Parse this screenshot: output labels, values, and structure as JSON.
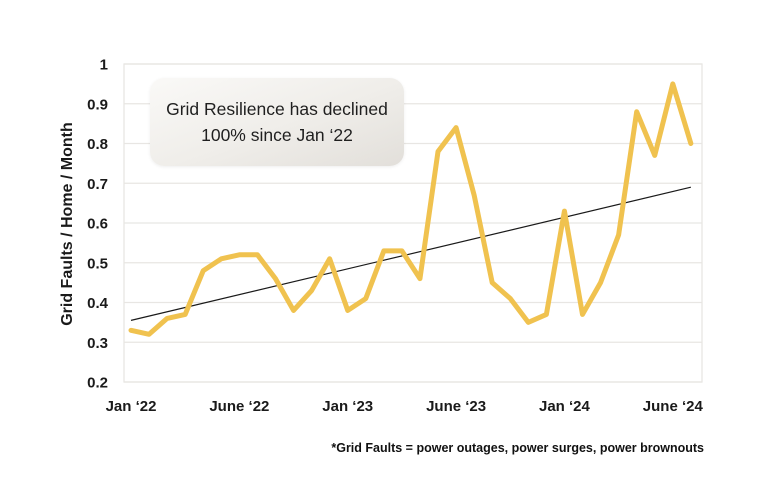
{
  "page": {
    "background": "#ffffff"
  },
  "chart_data": {
    "type": "line",
    "title": "",
    "ylabel": "Grid Faults / Home / Month",
    "xlabel": "",
    "ylim": [
      0.2,
      1.0
    ],
    "ytick_step": 0.1,
    "ytick_labels": [
      "1",
      "0.9",
      "0.8",
      "0.7",
      "0.6",
      "0.5",
      "0.4",
      "0.3",
      "0.2"
    ],
    "x_tick_labels": [
      "Jan ‘22",
      "June ‘22",
      "Jan ‘23",
      "June ‘23",
      "Jan ‘24",
      "June ‘24"
    ],
    "x_tick_indices": [
      0,
      6,
      12,
      18,
      24,
      30
    ],
    "grid": "horizontal-only",
    "legend": "none",
    "series": [
      {
        "name": "Grid Faults per Home per Month",
        "values": [
          0.33,
          0.32,
          0.36,
          0.37,
          0.48,
          0.51,
          0.52,
          0.52,
          0.46,
          0.38,
          0.43,
          0.51,
          0.38,
          0.41,
          0.53,
          0.53,
          0.46,
          0.78,
          0.84,
          0.67,
          0.45,
          0.41,
          0.35,
          0.37,
          0.63,
          0.37,
          0.45,
          0.57,
          0.88,
          0.77,
          0.95,
          0.8
        ]
      }
    ],
    "trendline": {
      "start": 0.355,
      "end": 0.69
    },
    "annotation": {
      "line1": "Grid Resilience has declined",
      "line2": "100% since Jan ‘22"
    },
    "footnote": "*Grid Faults = power outages, power surges, power brownouts",
    "colors": {
      "line": "#F0C24F",
      "trend": "#1a1a1a",
      "grid": "#e8e6e3",
      "text": "#1a1a1a",
      "annotation_bg_top": "#faf9f7",
      "annotation_bg_bottom": "#e2dfda"
    }
  }
}
